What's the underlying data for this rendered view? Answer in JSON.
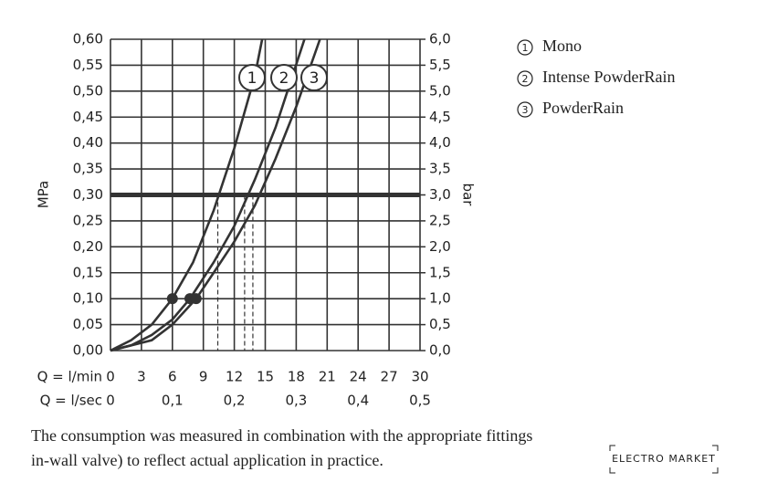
{
  "chart_data": {
    "type": "line",
    "y_label": "MPa",
    "y2_label": "bar",
    "x_label": "Q = l/min",
    "x2_label": "Q = l/sec",
    "xlim": [
      0,
      30
    ],
    "xticks": [
      0,
      3,
      6,
      9,
      12,
      15,
      18,
      21,
      24,
      27,
      30
    ],
    "x2lim": [
      0,
      0.5
    ],
    "x2ticks": [
      0,
      {
        "value": 0.1,
        "label": "0,1"
      },
      {
        "value": 0.2,
        "label": "0,2"
      },
      {
        "value": 0.3,
        "label": "0,3"
      },
      {
        "value": 0.4,
        "label": "0,4"
      },
      {
        "value": 0.5,
        "label": "0,5"
      }
    ],
    "ylim": [
      0,
      0.6
    ],
    "yticks": [
      {
        "value": 0,
        "label": "0,00"
      },
      {
        "value": 0.05,
        "label": "0,05"
      },
      {
        "value": 0.1,
        "label": "0,10"
      },
      {
        "value": 0.15,
        "label": "0,15"
      },
      {
        "value": 0.2,
        "label": "0,20"
      },
      {
        "value": 0.25,
        "label": "0,25"
      },
      {
        "value": 0.3,
        "label": "0,30"
      },
      {
        "value": 0.35,
        "label": "0,35"
      },
      {
        "value": 0.4,
        "label": "0,40"
      },
      {
        "value": 0.45,
        "label": "0,45"
      },
      {
        "value": 0.5,
        "label": "0,50"
      },
      {
        "value": 0.55,
        "label": "0,55"
      },
      {
        "value": 0.6,
        "label": "0,60"
      }
    ],
    "y2lim": [
      0,
      6
    ],
    "y2ticks": [
      {
        "value": 0,
        "label": "0,0"
      },
      {
        "value": 0.5,
        "label": "0,5"
      },
      {
        "value": 1,
        "label": "1,0"
      },
      {
        "value": 1.5,
        "label": "1,5"
      },
      {
        "value": 2,
        "label": "2,0"
      },
      {
        "value": 2.5,
        "label": "2,5"
      },
      {
        "value": 3,
        "label": "3,0"
      },
      {
        "value": 3.5,
        "label": "3,5"
      },
      {
        "value": 4,
        "label": "4,0"
      },
      {
        "value": 4.5,
        "label": "4,5"
      },
      {
        "value": 5,
        "label": "5,0"
      },
      {
        "value": 5.5,
        "label": "5,5"
      },
      {
        "value": 6,
        "label": "6,0"
      }
    ],
    "grid": true,
    "series": [
      {
        "name": "Mono",
        "tag": "1",
        "color": "#333333",
        "x": [
          0,
          2,
          4,
          6,
          8,
          10,
          12,
          14,
          14.7
        ],
        "values": [
          0,
          0.02,
          0.05,
          0.1,
          0.17,
          0.27,
          0.39,
          0.53,
          0.6
        ],
        "marker": {
          "x": 6,
          "y": 0.1
        },
        "reference_x": 10.4
      },
      {
        "name": "Intense PowderRain",
        "tag": "2",
        "color": "#333333",
        "x": [
          0,
          2,
          4,
          6,
          7.7,
          10,
          12,
          14,
          16,
          18.8
        ],
        "values": [
          0,
          0.01,
          0.03,
          0.06,
          0.1,
          0.17,
          0.24,
          0.33,
          0.43,
          0.6
        ],
        "marker": {
          "x": 7.7,
          "y": 0.1
        },
        "reference_x": 13
      },
      {
        "name": "PowderRain",
        "tag": "3",
        "color": "#333333",
        "x": [
          0,
          2,
          4,
          6,
          8.3,
          10,
          12,
          14,
          16,
          18,
          20.3
        ],
        "values": [
          0,
          0.01,
          0.02,
          0.05,
          0.1,
          0.15,
          0.21,
          0.28,
          0.37,
          0.47,
          0.6
        ],
        "marker": {
          "x": 8.3,
          "y": 0.1
        },
        "reference_x": 13.8
      }
    ],
    "reference_y": 0.3,
    "caption": [
      "The consumption was measured in combination with the appropriate fittings",
      "in-wall valve) to reflect actual application in practice."
    ],
    "watermark": "ELECTRO MARKET"
  }
}
